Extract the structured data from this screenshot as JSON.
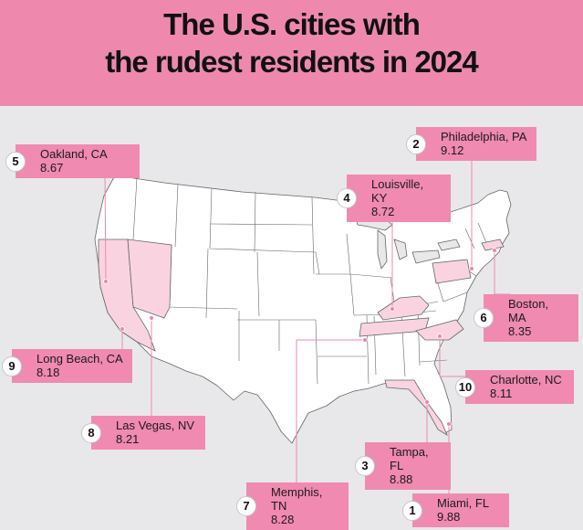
{
  "title": {
    "line1": "The U.S. cities with",
    "line2": "the rudest residents in 2024"
  },
  "colors": {
    "header": "#ee89ad",
    "label": "#f08ab0",
    "highlight_state": "#f9d4e0",
    "state_fill": "#ffffff",
    "state_border": "#666666",
    "connector": "#ee89ad",
    "background": "#e8e8ea"
  },
  "cities": [
    {
      "rank": "1",
      "city": "Miami, FL",
      "score": "9.88",
      "state": "Florida"
    },
    {
      "rank": "2",
      "city": "Philadelphia, PA",
      "score": "9.12",
      "state": "Pennsylvania"
    },
    {
      "rank": "3",
      "city": "Tampa, FL",
      "score": "8.88",
      "state": "Florida"
    },
    {
      "rank": "4",
      "city": "Louisville, KY",
      "score": "8.72",
      "state": "Kentucky"
    },
    {
      "rank": "5",
      "city": "Oakland, CA",
      "score": "8.67",
      "state": "California"
    },
    {
      "rank": "6",
      "city": "Boston, MA",
      "score": "8.35",
      "state": "Massachusetts"
    },
    {
      "rank": "7",
      "city": "Memphis, TN",
      "score": "8.28",
      "state": "Tennessee"
    },
    {
      "rank": "8",
      "city": "Las Vegas, NV",
      "score": "8.21",
      "state": "Nevada"
    },
    {
      "rank": "9",
      "city": "Long Beach, CA",
      "score": "8.18",
      "state": "California"
    },
    {
      "rank": "10",
      "city": "Charlotte, NC",
      "score": "8.11",
      "state": "North Carolina"
    }
  ]
}
